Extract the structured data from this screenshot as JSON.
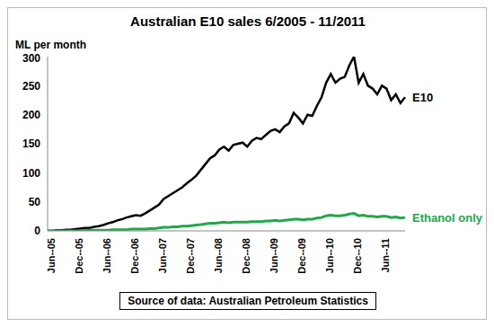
{
  "chart_data": {
    "type": "line",
    "title": "Australian E10 sales 6/2005 - 11/2011",
    "y_label": "ML per month",
    "source": "Source of data: Australian Petroleum Statistics",
    "categories": [
      "Jun--05",
      null,
      null,
      null,
      null,
      null,
      "Dec--05",
      null,
      null,
      null,
      null,
      null,
      "Jun--06",
      null,
      null,
      null,
      null,
      null,
      "Dec--06",
      null,
      null,
      null,
      null,
      null,
      "Jun--07",
      null,
      null,
      null,
      null,
      null,
      "Dec--07",
      null,
      null,
      null,
      null,
      null,
      "Jun--08",
      null,
      null,
      null,
      null,
      null,
      "Dec--08",
      null,
      null,
      null,
      null,
      null,
      "Jun--09",
      null,
      null,
      null,
      null,
      null,
      "Dec--09",
      null,
      null,
      null,
      null,
      null,
      "Jun--10",
      null,
      null,
      null,
      null,
      null,
      "Dec--10",
      null,
      null,
      null,
      null,
      null,
      "Jun--11",
      null,
      null,
      null,
      null,
      null
    ],
    "series": [
      {
        "name": "E10",
        "color": "#000000",
        "values": [
          0,
          0,
          1,
          1,
          2,
          2,
          3,
          4,
          5,
          5,
          7,
          8,
          10,
          13,
          15,
          18,
          20,
          23,
          25,
          27,
          26,
          30,
          35,
          40,
          45,
          55,
          60,
          65,
          70,
          75,
          82,
          88,
          95,
          105,
          115,
          125,
          130,
          140,
          145,
          138,
          148,
          150,
          152,
          145,
          155,
          160,
          158,
          165,
          172,
          175,
          170,
          180,
          185,
          203,
          195,
          185,
          200,
          198,
          215,
          230,
          255,
          270,
          255,
          262,
          265,
          285,
          300,
          255,
          270,
          250,
          245,
          235,
          250,
          245,
          225,
          235,
          220,
          230
        ]
      },
      {
        "name": "Ethanol only",
        "color": "#22a84a",
        "values": [
          0,
          0,
          0,
          0,
          0,
          0,
          0,
          0,
          1,
          1,
          1,
          1,
          1,
          1,
          2,
          2,
          2,
          2,
          3,
          3,
          3,
          3,
          4,
          4,
          5,
          6,
          6,
          7,
          7,
          8,
          8,
          9,
          10,
          11,
          12,
          13,
          13,
          14,
          15,
          14,
          15,
          15,
          15,
          15,
          16,
          16,
          16,
          17,
          17,
          18,
          17,
          18,
          19,
          20,
          20,
          19,
          20,
          20,
          22,
          23,
          26,
          27,
          26,
          26,
          27,
          29,
          30,
          26,
          27,
          25,
          25,
          24,
          25,
          25,
          23,
          24,
          22,
          23
        ]
      }
    ],
    "ylim": [
      0,
      300
    ],
    "yticks": [
      0,
      50,
      100,
      150,
      200,
      250,
      300
    ],
    "grid": false
  }
}
